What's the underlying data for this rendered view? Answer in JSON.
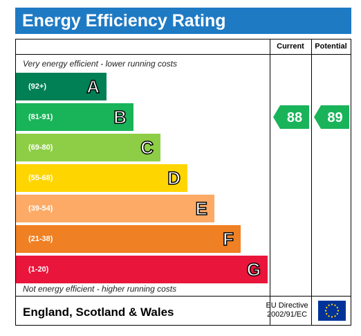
{
  "title": "Energy Efficiency Rating",
  "columns": {
    "current": "Current",
    "potential": "Potential"
  },
  "top_note": "Very energy efficient - lower running costs",
  "bottom_note": "Not energy efficient - higher running costs",
  "footer": {
    "region": "England, Scotland & Wales",
    "directive_line1": "EU Directive",
    "directive_line2": "2002/91/EC",
    "flag_icon": "eu-flag-icon"
  },
  "colors": {
    "header": "#1f7ac4",
    "A": "#008054",
    "B": "#19b459",
    "C": "#8dce46",
    "D": "#ffd500",
    "E": "#fcaa65",
    "F": "#ef8023",
    "G": "#e9153b"
  },
  "chart_data": {
    "type": "bar",
    "categories": [
      "A",
      "B",
      "C",
      "D",
      "E",
      "F",
      "G"
    ],
    "ranges": [
      "(92+)",
      "(81-91)",
      "(69-80)",
      "(55-68)",
      "(39-54)",
      "(21-38)",
      "(1-20)"
    ],
    "current": {
      "value": "88",
      "band": "B"
    },
    "potential": {
      "value": "89",
      "band": "B"
    }
  }
}
